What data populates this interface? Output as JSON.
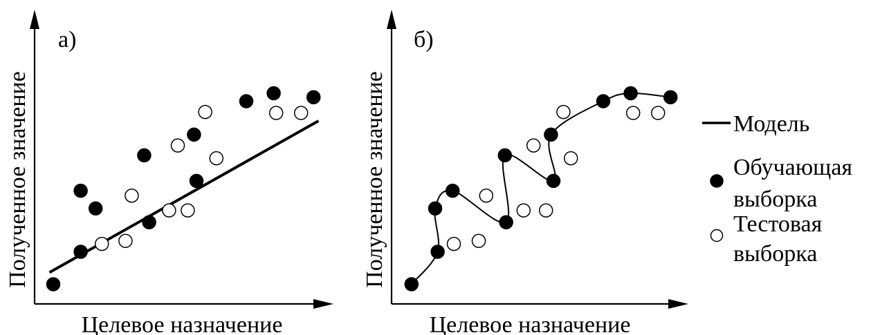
{
  "colors": {
    "ink": "#000000",
    "background": "#ffffff",
    "test_fill": "#ffffff"
  },
  "legend": {
    "model": "Модель",
    "train_line1": "Обучающая",
    "train_line2": "выборка",
    "test_line1": "Тестовая",
    "test_line2": "выборка"
  },
  "chart_data": [
    {
      "type": "scatter",
      "panel_label": "а)",
      "xlabel": "Целевое назначение",
      "ylabel": "Полученное значение",
      "grid": false,
      "model": {
        "kind": "linear",
        "x": [
          0.6,
          11.4
        ],
        "y": [
          1.6,
          9.3
        ]
      },
      "series": [
        {
          "name": "Обучающая выборка",
          "marker": "filled",
          "x": [
            0.75,
            1.85,
            2.45,
            1.85,
            4.6,
            4.4,
            6.5,
            6.4,
            8.5,
            9.6,
            11.2
          ],
          "y": [
            1.0,
            2.65,
            4.85,
            5.75,
            4.15,
            7.55,
            6.25,
            8.6,
            10.3,
            10.7,
            10.5
          ]
        },
        {
          "name": "Тестовая выборка",
          "marker": "open",
          "x": [
            2.7,
            3.65,
            3.9,
            5.4,
            6.15,
            5.75,
            7.3,
            6.85,
            9.7,
            10.7
          ],
          "y": [
            3.05,
            3.2,
            5.5,
            4.75,
            4.75,
            8.05,
            7.4,
            9.75,
            9.7,
            9.7
          ]
        }
      ]
    },
    {
      "type": "scatter",
      "panel_label": "б)",
      "xlabel": "Целевое назначение",
      "ylabel": "Полученное значение",
      "grid": false,
      "model": {
        "kind": "interpolating-curve",
        "x": [
          0.8,
          1.85,
          1.75,
          2.45,
          4.6,
          4.55,
          6.5,
          6.4,
          8.5,
          9.6,
          11.2
        ],
        "y": [
          1.0,
          2.65,
          4.85,
          5.75,
          4.15,
          7.55,
          6.25,
          8.6,
          10.3,
          10.7,
          10.5
        ]
      },
      "series": [
        {
          "name": "Обучающая выборка",
          "marker": "filled",
          "x": [
            0.8,
            1.85,
            1.75,
            2.45,
            4.6,
            4.55,
            6.5,
            6.4,
            8.5,
            9.6,
            11.2
          ],
          "y": [
            1.0,
            2.65,
            4.85,
            5.75,
            4.15,
            7.55,
            6.25,
            8.6,
            10.3,
            10.7,
            10.5
          ]
        },
        {
          "name": "Тестовая выборка",
          "marker": "open",
          "x": [
            2.5,
            3.5,
            3.8,
            5.3,
            6.2,
            5.7,
            7.2,
            6.9,
            9.7,
            10.7
          ],
          "y": [
            3.05,
            3.2,
            5.5,
            4.75,
            4.75,
            8.05,
            7.4,
            9.75,
            9.7,
            9.7
          ]
        }
      ]
    }
  ]
}
